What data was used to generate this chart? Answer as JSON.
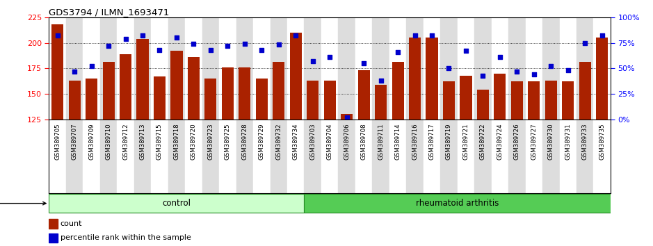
{
  "title": "GDS3794 / ILMN_1693471",
  "samples": [
    "GSM389705",
    "GSM389707",
    "GSM389709",
    "GSM389710",
    "GSM389712",
    "GSM389713",
    "GSM389715",
    "GSM389718",
    "GSM389720",
    "GSM389723",
    "GSM389725",
    "GSM389728",
    "GSM389729",
    "GSM389732",
    "GSM389734",
    "GSM389703",
    "GSM389704",
    "GSM389706",
    "GSM389708",
    "GSM389711",
    "GSM389714",
    "GSM389716",
    "GSM389717",
    "GSM389719",
    "GSM389721",
    "GSM389722",
    "GSM389724",
    "GSM389726",
    "GSM389727",
    "GSM389730",
    "GSM389731",
    "GSM389733",
    "GSM389735"
  ],
  "counts": [
    218,
    163,
    165,
    181,
    189,
    204,
    167,
    192,
    186,
    165,
    176,
    176,
    165,
    181,
    210,
    163,
    163,
    130,
    173,
    159,
    181,
    205,
    205,
    162,
    168,
    154,
    170,
    162,
    162,
    163,
    162,
    181,
    205
  ],
  "percentiles": [
    82,
    47,
    52,
    72,
    79,
    82,
    68,
    80,
    74,
    68,
    72,
    74,
    68,
    73,
    82,
    57,
    61,
    2,
    55,
    38,
    66,
    82,
    82,
    50,
    67,
    43,
    61,
    47,
    44,
    52,
    48,
    75,
    82
  ],
  "n_control": 15,
  "bar_color": "#AA2200",
  "dot_color": "#0000CC",
  "left_ylim": [
    125,
    225
  ],
  "right_ylim": [
    0,
    100
  ],
  "left_yticks": [
    125,
    150,
    175,
    200,
    225
  ],
  "right_yticks": [
    0,
    25,
    50,
    75,
    100
  ],
  "control_color": "#CCFFCC",
  "ra_color": "#55CC55",
  "col_bg_even": "#FFFFFF",
  "col_bg_odd": "#DDDDDD",
  "grid_color": "#000000"
}
